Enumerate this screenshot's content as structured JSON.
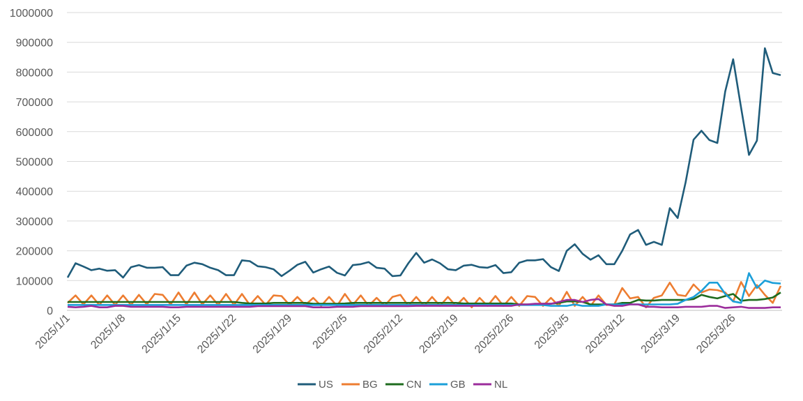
{
  "chart_data": {
    "type": "line",
    "title": "",
    "xlabel": "",
    "ylabel": "",
    "ylim": [
      0,
      1000000
    ],
    "yticks": [
      0,
      100000,
      200000,
      300000,
      400000,
      500000,
      600000,
      700000,
      800000,
      900000,
      1000000
    ],
    "grid": true,
    "legend_position": "bottom",
    "x": [
      "2025/1/1",
      "2025/1/2",
      "2025/1/3",
      "2025/1/4",
      "2025/1/5",
      "2025/1/6",
      "2025/1/7",
      "2025/1/8",
      "2025/1/9",
      "2025/1/10",
      "2025/1/11",
      "2025/1/12",
      "2025/1/13",
      "2025/1/14",
      "2025/1/15",
      "2025/1/16",
      "2025/1/17",
      "2025/1/18",
      "2025/1/19",
      "2025/1/20",
      "2025/1/21",
      "2025/1/22",
      "2025/1/23",
      "2025/1/24",
      "2025/1/25",
      "2025/1/26",
      "2025/1/27",
      "2025/1/28",
      "2025/1/29",
      "2025/1/30",
      "2025/1/31",
      "2025/2/1",
      "2025/2/2",
      "2025/2/3",
      "2025/2/4",
      "2025/2/5",
      "2025/2/6",
      "2025/2/7",
      "2025/2/8",
      "2025/2/9",
      "2025/2/10",
      "2025/2/11",
      "2025/2/12",
      "2025/2/13",
      "2025/2/14",
      "2025/2/15",
      "2025/2/16",
      "2025/2/17",
      "2025/2/18",
      "2025/2/19",
      "2025/2/20",
      "2025/2/21",
      "2025/2/22",
      "2025/2/23",
      "2025/2/24",
      "2025/2/25",
      "2025/2/26",
      "2025/2/27",
      "2025/2/28",
      "2025/3/1",
      "2025/3/2",
      "2025/3/3",
      "2025/3/4",
      "2025/3/5",
      "2025/3/6",
      "2025/3/7",
      "2025/3/8",
      "2025/3/9",
      "2025/3/10",
      "2025/3/11",
      "2025/3/12",
      "2025/3/13",
      "2025/3/14",
      "2025/3/15",
      "2025/3/16",
      "2025/3/17",
      "2025/3/18",
      "2025/3/19",
      "2025/3/20",
      "2025/3/21",
      "2025/3/22",
      "2025/3/23",
      "2025/3/24",
      "2025/3/25",
      "2025/3/26",
      "2025/3/27",
      "2025/3/28",
      "2025/3/29",
      "2025/3/30",
      "2025/3/31",
      "2025/4/1"
    ],
    "x_tick_labels": [
      "2025/1/1",
      "2025/1/8",
      "2025/1/15",
      "2025/1/22",
      "2025/1/29",
      "2025/2/5",
      "2025/2/12",
      "2025/2/19",
      "2025/2/26",
      "2025/3/5",
      "2025/3/12",
      "2025/3/19",
      "2025/3/26"
    ],
    "series": [
      {
        "name": "US",
        "color": "#1F5C7A",
        "values": [
          110000,
          158000,
          147000,
          135000,
          140000,
          133000,
          135000,
          110000,
          145000,
          152000,
          143000,
          143000,
          145000,
          118000,
          118000,
          150000,
          160000,
          155000,
          143000,
          135000,
          118000,
          118000,
          168000,
          165000,
          148000,
          145000,
          138000,
          115000,
          133000,
          153000,
          163000,
          127000,
          138000,
          147000,
          126000,
          117000,
          152000,
          155000,
          162000,
          143000,
          140000,
          115000,
          117000,
          158000,
          193000,
          160000,
          171000,
          158000,
          138000,
          135000,
          150000,
          153000,
          145000,
          143000,
          152000,
          125000,
          128000,
          160000,
          168000,
          168000,
          172000,
          145000,
          132000,
          200000,
          222000,
          190000,
          170000,
          185000,
          155000,
          155000,
          200000,
          255000,
          270000,
          220000,
          230000,
          220000,
          343000,
          310000,
          430000,
          573000,
          603000,
          572000,
          562000,
          735000,
          843000,
          680000,
          522000,
          570000,
          880000,
          797000,
          790000
        ]
      },
      {
        "name": "BG",
        "color": "#ED7D31",
        "values": [
          25000,
          50000,
          20000,
          50000,
          18000,
          50000,
          18000,
          50000,
          18000,
          52000,
          20000,
          55000,
          52000,
          20000,
          60000,
          20000,
          60000,
          20000,
          50000,
          18000,
          55000,
          18000,
          55000,
          18000,
          48000,
          18000,
          50000,
          48000,
          18000,
          45000,
          18000,
          42000,
          15000,
          45000,
          15000,
          55000,
          18000,
          50000,
          15000,
          42000,
          15000,
          45000,
          52000,
          15000,
          45000,
          15000,
          45000,
          15000,
          45000,
          15000,
          42000,
          10000,
          42000,
          15000,
          48000,
          15000,
          45000,
          15000,
          48000,
          45000,
          15000,
          42000,
          15000,
          62000,
          15000,
          45000,
          15000,
          50000,
          18000,
          20000,
          75000,
          40000,
          45000,
          10000,
          42000,
          50000,
          93000,
          52000,
          48000,
          87000,
          60000,
          70000,
          68000,
          60000,
          30000,
          95000,
          48000,
          85000,
          52000,
          25000,
          82000
        ]
      },
      {
        "name": "CN",
        "color": "#1E6B1E",
        "values": [
          28000,
          28000,
          28000,
          28000,
          28000,
          28000,
          28000,
          28000,
          28000,
          28000,
          28000,
          28000,
          28000,
          28000,
          28000,
          28000,
          28000,
          28000,
          28000,
          28000,
          28000,
          28000,
          25000,
          23000,
          23000,
          23000,
          25000,
          25000,
          25000,
          25000,
          25000,
          22000,
          22000,
          22000,
          22000,
          23000,
          25000,
          25000,
          25000,
          25000,
          25000,
          25000,
          25000,
          25000,
          25000,
          25000,
          25000,
          25000,
          25000,
          25000,
          23000,
          23000,
          23000,
          23000,
          23000,
          23000,
          23000,
          20000,
          20000,
          20000,
          22000,
          22000,
          25000,
          30000,
          30000,
          28000,
          20000,
          20000,
          20000,
          20000,
          25000,
          25000,
          35000,
          33000,
          33000,
          35000,
          35000,
          35000,
          35000,
          38000,
          52000,
          45000,
          40000,
          48000,
          55000,
          32000,
          35000,
          35000,
          38000,
          43000,
          60000
        ]
      },
      {
        "name": "GB",
        "color": "#1B9FD9",
        "values": [
          18000,
          18000,
          18000,
          18000,
          18000,
          18000,
          18000,
          18000,
          18000,
          18000,
          18000,
          18000,
          18000,
          18000,
          18000,
          18000,
          18000,
          18000,
          18000,
          18000,
          18000,
          18000,
          18000,
          18000,
          18000,
          18000,
          18000,
          18000,
          18000,
          18000,
          18000,
          18000,
          18000,
          18000,
          18000,
          18000,
          18000,
          18000,
          18000,
          18000,
          18000,
          18000,
          18000,
          18000,
          18000,
          18000,
          18000,
          18000,
          18000,
          18000,
          18000,
          18000,
          18000,
          18000,
          18000,
          18000,
          18000,
          18000,
          18000,
          18000,
          18000,
          15000,
          15000,
          15000,
          20000,
          15000,
          15000,
          15000,
          20000,
          20000,
          20000,
          20000,
          20000,
          20000,
          20000,
          20000,
          20000,
          22000,
          35000,
          45000,
          65000,
          93000,
          93000,
          55000,
          30000,
          25000,
          125000,
          75000,
          100000,
          92000,
          90000
        ]
      },
      {
        "name": "NL",
        "color": "#9B2C9B",
        "values": [
          12000,
          10000,
          12000,
          15000,
          10000,
          10000,
          15000,
          15000,
          12000,
          12000,
          12000,
          12000,
          12000,
          10000,
          10000,
          12000,
          12000,
          12000,
          12000,
          12000,
          12000,
          12000,
          12000,
          12000,
          14000,
          14000,
          14000,
          14000,
          14000,
          14000,
          14000,
          10000,
          10000,
          10000,
          12000,
          12000,
          12000,
          14000,
          14000,
          14000,
          14000,
          14000,
          14000,
          14000,
          15000,
          15000,
          15000,
          15000,
          15000,
          15000,
          15000,
          15000,
          15000,
          15000,
          15000,
          15000,
          15000,
          20000,
          20000,
          22000,
          22000,
          22000,
          28000,
          35000,
          35000,
          28000,
          35000,
          38000,
          20000,
          15000,
          15000,
          20000,
          20000,
          12000,
          12000,
          10000,
          10000,
          10000,
          12000,
          12000,
          12000,
          15000,
          15000,
          8000,
          10000,
          12000,
          8000,
          8000,
          8000,
          10000,
          10000
        ]
      }
    ]
  }
}
